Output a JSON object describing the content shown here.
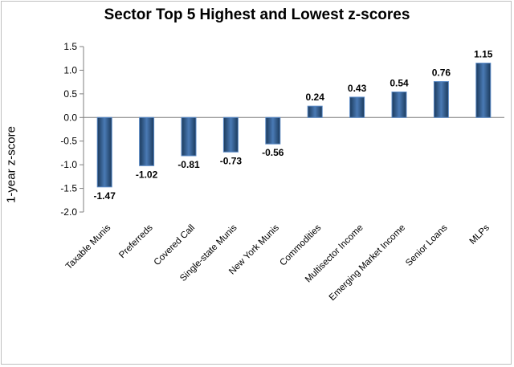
{
  "chart_data": {
    "type": "bar",
    "title": "Sector Top 5 Highest and Lowest z-scores",
    "xlabel": "",
    "ylabel": "1-year z-score",
    "categories": [
      "Taxable Munis",
      "Preferreds",
      "Covered Call",
      "Single-state Munis",
      "New York Munis",
      "Commodities",
      "Multisector Income",
      "Emerging Market Income",
      "Senior Loans",
      "MLPs"
    ],
    "values": [
      -1.47,
      -1.02,
      -0.81,
      -0.73,
      -0.56,
      0.24,
      0.43,
      0.54,
      0.76,
      1.15
    ],
    "data_labels": [
      "-1.47",
      "-1.02",
      "-0.81",
      "-0.73",
      "-0.56",
      "0.24",
      "0.43",
      "0.54",
      "0.76",
      "1.15"
    ],
    "ylim": [
      -2.0,
      1.5
    ],
    "yticks": [
      -2.0,
      -1.5,
      -1.0,
      -0.5,
      0.0,
      0.5,
      1.0,
      1.5
    ],
    "ytick_labels": [
      "-2.0",
      "-1.5",
      "-1.0",
      "-0.5",
      "0.0",
      "0.5",
      "1.0",
      "1.5"
    ],
    "grid": false,
    "legend": "none",
    "colors": {
      "bar_dark": "#1b3a5c",
      "bar_light": "#4a7ab5",
      "bar_edge": "#5b8ac6"
    }
  }
}
